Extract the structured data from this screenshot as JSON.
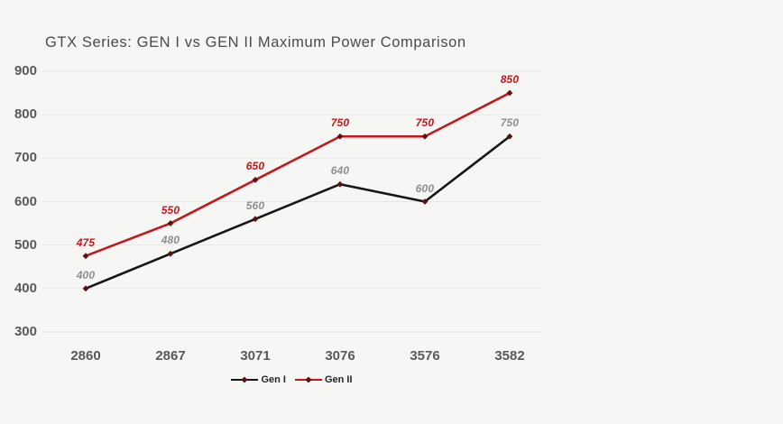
{
  "chart_data": {
    "type": "line",
    "title": "GTX Series: GEN I vs GEN II Maximum Power Comparison",
    "categories": [
      "2860",
      "2867",
      "3071",
      "3076",
      "3576",
      "3582"
    ],
    "series": [
      {
        "name": "Gen I",
        "values": [
          400,
          480,
          560,
          640,
          600,
          750
        ],
        "color": "#161616",
        "label_color": "#8f8f8f"
      },
      {
        "name": "Gen II",
        "values": [
          475,
          550,
          650,
          750,
          750,
          850
        ],
        "color": "#c2181e",
        "label_color": "#c2181e"
      }
    ],
    "xlabel": "",
    "ylabel": "",
    "ylim": [
      300,
      900
    ],
    "yticks": [
      300,
      400,
      500,
      600,
      700,
      800,
      900
    ],
    "grid": "horizontal",
    "legend_position": "bottom-center",
    "marker": {
      "shape": "diamond",
      "color": "#5e1013"
    }
  },
  "theme": {
    "background": "#f6f6f4",
    "gridline": "#e7e7e5",
    "axis_label_color": "#595959",
    "title_color": "#4a4a4a",
    "legend_text_color": "#262626"
  }
}
